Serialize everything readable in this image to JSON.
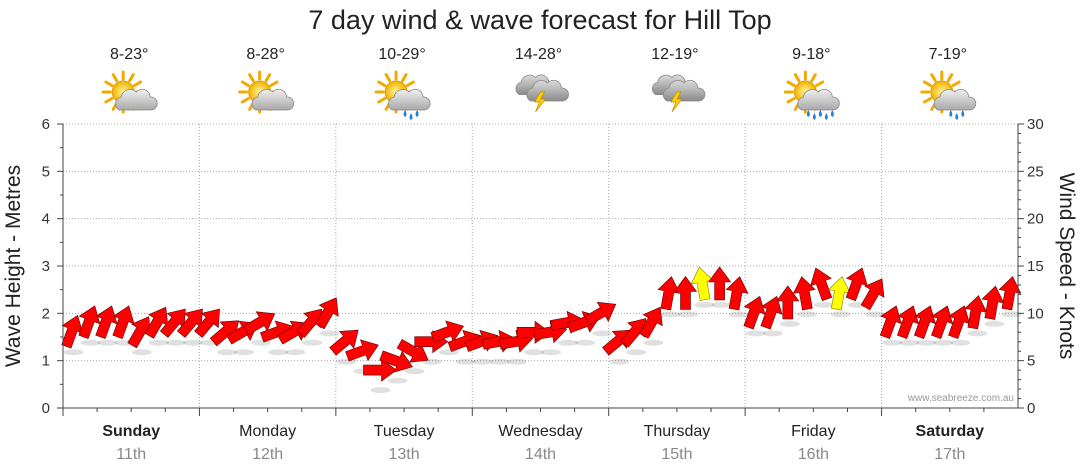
{
  "chart_data": {
    "type": "line",
    "title": "7 day wind & wave forecast for Hill Top",
    "ylabel_left": "Wave Height - Metres",
    "ylabel_right": "Wind Speed - Knots",
    "ylim_left": [
      0,
      6
    ],
    "ylim_right": [
      0,
      30
    ],
    "y_ticks_left": [
      "0",
      "1",
      "2",
      "3",
      "4",
      "5",
      "6"
    ],
    "y_ticks_right": [
      "0",
      "5",
      "10",
      "15",
      "20",
      "25",
      "30"
    ],
    "grid": true,
    "credit": "www.seabreeze.com.au",
    "days": [
      {
        "name": "Sunday",
        "date": "11th",
        "temp": "8-23°",
        "icon": "partly-cloudy-icon",
        "bold": true
      },
      {
        "name": "Monday",
        "date": "12th",
        "temp": "8-28°",
        "icon": "partly-cloudy-icon",
        "bold": false
      },
      {
        "name": "Tuesday",
        "date": "13th",
        "temp": "10-29°",
        "icon": "showers-icon",
        "bold": false
      },
      {
        "name": "Wednesday",
        "date": "14th",
        "temp": "14-28°",
        "icon": "storm-icon",
        "bold": false
      },
      {
        "name": "Thursday",
        "date": "15th",
        "temp": "12-19°",
        "icon": "storm-icon",
        "bold": false
      },
      {
        "name": "Friday",
        "date": "16th",
        "temp": "9-18°",
        "icon": "rain-icon",
        "bold": false
      },
      {
        "name": "Saturday",
        "date": "17th",
        "temp": "7-19°",
        "icon": "showers-icon",
        "bold": true
      }
    ],
    "colors": {
      "normal_arrow": "#ff0000",
      "strong_arrow": "#ffff00",
      "arrow_outline": "#660000",
      "grid": "#aaaaaa"
    },
    "wind_series": {
      "name": "",
      "units": "knots",
      "points_per_day": 8,
      "values": [
        8,
        9,
        9,
        9,
        8,
        9,
        9,
        9,
        9,
        8,
        8,
        9,
        8,
        8,
        9,
        10,
        7,
        6,
        4,
        5,
        6,
        7,
        8,
        7,
        7,
        7,
        7,
        8,
        8,
        9,
        9,
        10,
        7,
        8,
        9,
        12,
        12,
        13,
        13,
        12,
        10,
        10,
        11,
        12,
        13,
        12,
        13,
        12,
        9,
        9,
        9,
        9,
        9,
        10,
        11,
        12
      ],
      "directions_deg": [
        200,
        200,
        200,
        200,
        210,
        210,
        220,
        220,
        220,
        230,
        240,
        240,
        250,
        240,
        220,
        210,
        230,
        250,
        270,
        290,
        300,
        270,
        250,
        250,
        250,
        260,
        260,
        270,
        260,
        260,
        250,
        240,
        230,
        220,
        210,
        190,
        180,
        170,
        180,
        190,
        200,
        200,
        180,
        170,
        160,
        190,
        200,
        210,
        200,
        200,
        200,
        200,
        200,
        190,
        190,
        190
      ],
      "strong_indices": [
        37,
        45
      ]
    }
  }
}
